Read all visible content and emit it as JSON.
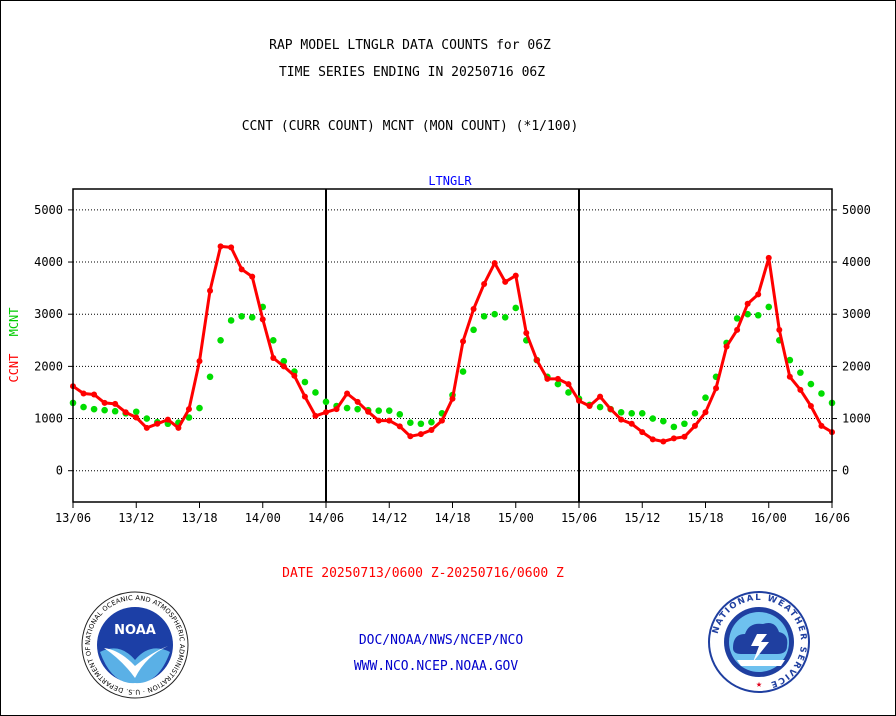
{
  "header": {
    "title_line1": "RAP MODEL LTNGLR DATA COUNTS for 06Z",
    "title_line2": "TIME SERIES ENDING IN 20250716 06Z",
    "subtitle": "CCNT (CURR COUNT) MCNT (MON COUNT) (*1/100)"
  },
  "footer": {
    "date_range": "DATE 20250713/0600 Z-20250716/0600 Z",
    "agency": "DOC/NOAA/NWS/NCEP/NCO",
    "website": "WWW.NCO.NCEP.NOAA.GOV"
  },
  "logos": {
    "noaa_text": "NOAA",
    "noaa_ring_text": "NATIONAL OCEANIC AND ATMOSPHERIC ADMINISTRATION · U.S. DEPARTMENT OF COMMERCE",
    "nws_ring_text": "NATIONAL WEATHER SERVICE"
  },
  "chart_data": {
    "type": "line",
    "panel_label": "LTNGLR",
    "ylabel_left": "CCNT",
    "ylabel_right": "MCNT",
    "ylim": [
      -600,
      5400
    ],
    "yticks": [
      0,
      1000,
      2000,
      3000,
      4000,
      5000
    ],
    "xlim": [
      0,
      72
    ],
    "x_ticks": [
      0,
      6,
      12,
      18,
      24,
      30,
      36,
      42,
      48,
      54,
      60,
      66,
      72
    ],
    "x_tick_labels": [
      "13/06",
      "13/12",
      "13/18",
      "14/00",
      "14/06",
      "14/12",
      "14/18",
      "15/00",
      "15/06",
      "15/12",
      "15/18",
      "16/00",
      "16/06"
    ],
    "x_unit": "hours after 13/06",
    "panel_dividers": [
      24,
      48
    ],
    "grid": true,
    "colors": {
      "ccnt": "#ff0000",
      "mcnt": "#00dd00",
      "axis": "#000000",
      "panel_label": "#0000ff"
    },
    "series": [
      {
        "name": "CCNT",
        "style": "solid-line-dots",
        "x": [
          0,
          1,
          2,
          3,
          4,
          5,
          6,
          7,
          8,
          9,
          10,
          11,
          12,
          13,
          14,
          15,
          16,
          17,
          18,
          19,
          20,
          21,
          22,
          23,
          24,
          25,
          26,
          27,
          28,
          29,
          30,
          31,
          32,
          33,
          34,
          35,
          36,
          37,
          38,
          39,
          40,
          41,
          42,
          43,
          44,
          45,
          46,
          47,
          48,
          49,
          50,
          51,
          52,
          53,
          54,
          55,
          56,
          57,
          58,
          59,
          60,
          61,
          62,
          63,
          64,
          65,
          66,
          67,
          68,
          69,
          70,
          71,
          72
        ],
        "values": [
          1620,
          1480,
          1460,
          1300,
          1280,
          1120,
          1020,
          820,
          900,
          980,
          820,
          1180,
          2100,
          3450,
          4300,
          4280,
          3860,
          3720,
          2900,
          2160,
          2000,
          1820,
          1420,
          1050,
          1120,
          1180,
          1480,
          1320,
          1130,
          960,
          960,
          850,
          660,
          700,
          780,
          960,
          1380,
          2480,
          3100,
          3580,
          3980,
          3620,
          3740,
          2640,
          2120,
          1760,
          1760,
          1660,
          1340,
          1240,
          1420,
          1180,
          980,
          900,
          740,
          600,
          560,
          620,
          650,
          860,
          1120,
          1580,
          2380,
          2700,
          3200,
          3380,
          4080,
          2700,
          1800,
          1550,
          1240,
          860,
          740
        ]
      },
      {
        "name": "MCNT",
        "style": "dotted",
        "x": [
          0,
          1,
          2,
          3,
          4,
          5,
          6,
          7,
          8,
          9,
          10,
          11,
          12,
          13,
          14,
          15,
          16,
          17,
          18,
          19,
          20,
          21,
          22,
          23,
          24,
          25,
          26,
          27,
          28,
          29,
          30,
          31,
          32,
          33,
          34,
          35,
          36,
          37,
          38,
          39,
          40,
          41,
          42,
          43,
          44,
          45,
          46,
          47,
          48,
          49,
          50,
          51,
          52,
          53,
          54,
          55,
          56,
          57,
          58,
          59,
          60,
          61,
          62,
          63,
          64,
          65,
          66,
          67,
          68,
          69,
          70,
          71,
          72
        ],
        "values": [
          1300,
          1220,
          1180,
          1160,
          1140,
          1100,
          1130,
          1000,
          930,
          900,
          920,
          1020,
          1200,
          1800,
          2500,
          2880,
          2960,
          2940,
          3140,
          2500,
          2100,
          1900,
          1700,
          1500,
          1320,
          1240,
          1200,
          1180,
          1160,
          1150,
          1150,
          1080,
          920,
          900,
          930,
          1100,
          1450,
          1900,
          2700,
          2960,
          3000,
          2940,
          3120,
          2500,
          2120,
          1800,
          1660,
          1500,
          1380,
          1260,
          1220,
          1180,
          1120,
          1100,
          1100,
          1000,
          950,
          840,
          900,
          1100,
          1400,
          1800,
          2450,
          2920,
          3000,
          2980,
          3140,
          2500,
          2120,
          1880,
          1660,
          1480,
          1300
        ]
      }
    ]
  }
}
